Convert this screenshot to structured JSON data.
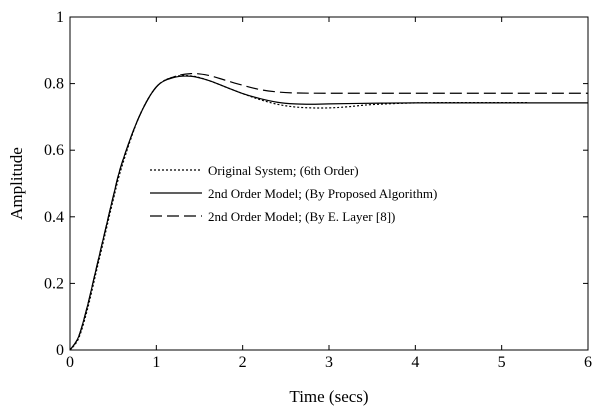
{
  "chart_data": {
    "type": "line",
    "title": "",
    "xlabel": "Time (secs)",
    "ylabel": "Amplitude",
    "xlim": [
      0,
      6
    ],
    "ylim": [
      0,
      1
    ],
    "xticks": [
      0,
      1,
      2,
      3,
      4,
      5,
      6
    ],
    "yticks": [
      0,
      0.2,
      0.4,
      0.6,
      0.8,
      1
    ],
    "xtick_labels": [
      "0",
      "1",
      "2",
      "3",
      "4",
      "5",
      "6"
    ],
    "ytick_labels": [
      "0",
      "0.2",
      "0.4",
      "0.6",
      "0.8",
      "1"
    ],
    "grid": false,
    "legend_position": "center",
    "series": [
      {
        "name": "Original System; (6th Order)",
        "style": "dotted",
        "color": "#000000",
        "x": [
          0,
          0.1,
          0.2,
          0.3,
          0.4,
          0.5,
          0.6,
          0.8,
          1.0,
          1.2,
          1.4,
          1.6,
          1.8,
          2.0,
          2.2,
          2.4,
          2.6,
          2.8,
          3.0,
          3.2,
          3.5,
          4.0,
          4.5,
          5.0,
          5.3
        ],
        "y": [
          0,
          0.035,
          0.12,
          0.23,
          0.34,
          0.45,
          0.55,
          0.7,
          0.79,
          0.82,
          0.823,
          0.81,
          0.79,
          0.77,
          0.752,
          0.738,
          0.73,
          0.727,
          0.727,
          0.73,
          0.737,
          0.742,
          0.743,
          0.743,
          0.743
        ]
      },
      {
        "name": "2nd Order Model; (By Proposed Algorithm)",
        "style": "solid",
        "color": "#000000",
        "x": [
          0,
          0.1,
          0.2,
          0.3,
          0.4,
          0.5,
          0.6,
          0.8,
          1.0,
          1.2,
          1.4,
          1.6,
          1.8,
          2.0,
          2.2,
          2.4,
          2.6,
          2.8,
          3.0,
          3.5,
          4.0,
          5.0,
          6.0
        ],
        "y": [
          0,
          0.04,
          0.13,
          0.24,
          0.35,
          0.46,
          0.56,
          0.7,
          0.79,
          0.818,
          0.822,
          0.81,
          0.79,
          0.77,
          0.755,
          0.744,
          0.739,
          0.738,
          0.739,
          0.741,
          0.742,
          0.742,
          0.742
        ]
      },
      {
        "name": "2nd Order Model; (By E. Layer [8])",
        "style": "dashed",
        "color": "#000000",
        "x": [
          0,
          0.1,
          0.2,
          0.3,
          0.4,
          0.5,
          0.6,
          0.8,
          1.0,
          1.2,
          1.4,
          1.6,
          1.8,
          2.0,
          2.2,
          2.4,
          2.6,
          3.0,
          4.0,
          5.0,
          6.0
        ],
        "y": [
          0,
          0.04,
          0.13,
          0.24,
          0.35,
          0.46,
          0.56,
          0.7,
          0.79,
          0.82,
          0.83,
          0.825,
          0.81,
          0.795,
          0.782,
          0.775,
          0.772,
          0.771,
          0.771,
          0.771,
          0.771
        ]
      }
    ]
  }
}
